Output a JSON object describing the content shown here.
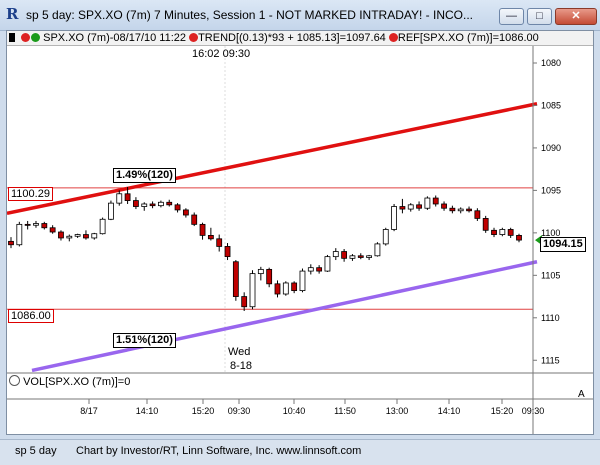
{
  "window": {
    "title": "sp 5 day: SPX.XO (7m) 7 Minutes, Session 1 - NOT MARKED INTRADAY! - INCO...",
    "buttons": {
      "minimize": "—",
      "maximize": "□",
      "close": "✕"
    }
  },
  "legend": {
    "symbol": "SPX.XO (7m)-08/17/10 11:22",
    "trend": "TREND[(0.13)*93 + 1085.13]=1097.64",
    "ref": "REF[SPX.XO (7m)]=1086.00",
    "dot_colors": [
      "#d22",
      "#1a9a1a",
      "#d22"
    ]
  },
  "chart": {
    "time_label_top": "16:02  09:30",
    "last_price": "1094.15",
    "ref_high_label": "1100.29",
    "ref_low_label": "1086.00",
    "trend_upper_label": "1.49%(120)",
    "trend_lower_label": "1.51%(120)",
    "day_label": "Wed",
    "date_label": "8-18",
    "y_ticks": [
      "1115",
      "1110",
      "1105",
      "1100",
      "1095",
      "1090",
      "1085",
      "1080"
    ],
    "x_ticks": [
      "8/17",
      "14:10",
      "15:20",
      "09:30",
      "10:40",
      "11:50",
      "13:00",
      "14:10",
      "15:20",
      "09:30"
    ],
    "volume_label": "VOL[SPX.XO (7m)]=0",
    "scroll_arrow": "A",
    "colors": {
      "upper_trend": "#e01010",
      "lower_trend": "#9966ee",
      "ref_line": "#e04040",
      "candle_red": "#c00000",
      "last_price_arrow": "#1a9a1a"
    }
  },
  "chart_data": {
    "type": "candlestick",
    "ylim": [
      1078.5,
      1117
    ],
    "y_ticks": [
      1080,
      1085,
      1090,
      1095,
      1100,
      1105,
      1110,
      1115
    ],
    "upper_trend": {
      "start": 1097.3,
      "end": 1110.2,
      "label": "1.49%(120)"
    },
    "lower_trend": {
      "start": 1078.8,
      "end": 1091.6,
      "label": "1.51%(120)"
    },
    "ref_lines": [
      1100.29,
      1086.0
    ],
    "last_price": 1094.15,
    "candles": [
      [
        1094.0,
        1094.5,
        1093.2,
        1093.6
      ],
      [
        1093.6,
        1096.3,
        1093.4,
        1096.0
      ],
      [
        1096.0,
        1096.4,
        1095.4,
        1095.9
      ],
      [
        1095.9,
        1096.4,
        1095.6,
        1096.1
      ],
      [
        1096.1,
        1096.3,
        1095.4,
        1095.6
      ],
      [
        1095.6,
        1095.9,
        1094.9,
        1095.1
      ],
      [
        1095.1,
        1095.3,
        1094.1,
        1094.4
      ],
      [
        1094.4,
        1094.8,
        1094.0,
        1094.6
      ],
      [
        1094.6,
        1094.9,
        1094.4,
        1094.8
      ],
      [
        1094.8,
        1095.3,
        1094.2,
        1094.4
      ],
      [
        1094.4,
        1095.0,
        1094.2,
        1094.9
      ],
      [
        1094.9,
        1096.8,
        1094.8,
        1096.6
      ],
      [
        1096.6,
        1098.8,
        1096.5,
        1098.5
      ],
      [
        1098.5,
        1100.0,
        1098.2,
        1099.6
      ],
      [
        1099.6,
        1100.4,
        1098.4,
        1098.8
      ],
      [
        1098.8,
        1099.2,
        1097.8,
        1098.1
      ],
      [
        1098.1,
        1098.6,
        1097.6,
        1098.4
      ],
      [
        1098.4,
        1098.7,
        1097.9,
        1098.2
      ],
      [
        1098.2,
        1098.8,
        1098.0,
        1098.6
      ],
      [
        1098.6,
        1098.9,
        1098.1,
        1098.3
      ],
      [
        1098.3,
        1098.5,
        1097.4,
        1097.7
      ],
      [
        1097.7,
        1097.9,
        1096.8,
        1097.1
      ],
      [
        1097.1,
        1097.4,
        1095.8,
        1096.0
      ],
      [
        1096.0,
        1096.2,
        1094.2,
        1094.7
      ],
      [
        1094.7,
        1095.6,
        1094.1,
        1094.3
      ],
      [
        1094.3,
        1094.8,
        1092.8,
        1093.4
      ],
      [
        1093.4,
        1093.8,
        1091.8,
        1092.2
      ],
      [
        1091.6,
        1091.8,
        1087.0,
        1087.5
      ],
      [
        1087.5,
        1088.0,
        1085.8,
        1086.3
      ],
      [
        1086.3,
        1090.6,
        1086.0,
        1090.2
      ],
      [
        1090.2,
        1091.0,
        1089.4,
        1090.7
      ],
      [
        1090.7,
        1090.9,
        1088.6,
        1089.0
      ],
      [
        1089.0,
        1089.4,
        1087.4,
        1087.8
      ],
      [
        1087.8,
        1089.3,
        1087.6,
        1089.1
      ],
      [
        1089.1,
        1089.3,
        1087.9,
        1088.2
      ],
      [
        1088.2,
        1090.8,
        1088.0,
        1090.5
      ],
      [
        1090.5,
        1091.3,
        1090.1,
        1090.9
      ],
      [
        1090.9,
        1091.2,
        1090.2,
        1090.5
      ],
      [
        1090.5,
        1092.4,
        1090.4,
        1092.2
      ],
      [
        1092.2,
        1093.2,
        1091.8,
        1092.8
      ],
      [
        1092.8,
        1093.1,
        1091.6,
        1092.0
      ],
      [
        1092.0,
        1092.5,
        1091.7,
        1092.3
      ],
      [
        1092.3,
        1092.6,
        1091.9,
        1092.1
      ],
      [
        1092.1,
        1092.4,
        1091.8,
        1092.3
      ],
      [
        1092.3,
        1093.9,
        1092.2,
        1093.7
      ],
      [
        1093.7,
        1095.6,
        1093.5,
        1095.4
      ],
      [
        1095.4,
        1098.4,
        1095.2,
        1098.1
      ],
      [
        1098.1,
        1099.0,
        1097.3,
        1097.8
      ],
      [
        1097.8,
        1098.5,
        1097.5,
        1098.3
      ],
      [
        1098.3,
        1098.7,
        1097.6,
        1097.9
      ],
      [
        1097.9,
        1099.3,
        1097.7,
        1099.1
      ],
      [
        1099.1,
        1099.4,
        1098.1,
        1098.4
      ],
      [
        1098.4,
        1098.7,
        1097.6,
        1097.9
      ],
      [
        1097.9,
        1098.2,
        1097.3,
        1097.6
      ],
      [
        1097.6,
        1098.0,
        1097.3,
        1097.8
      ],
      [
        1097.8,
        1098.1,
        1097.4,
        1097.6
      ],
      [
        1097.6,
        1097.9,
        1096.4,
        1096.7
      ],
      [
        1096.7,
        1097.0,
        1095.0,
        1095.3
      ],
      [
        1095.3,
        1095.6,
        1094.5,
        1094.8
      ],
      [
        1094.8,
        1095.6,
        1094.6,
        1095.4
      ],
      [
        1095.4,
        1095.6,
        1094.4,
        1094.7
      ],
      [
        1094.7,
        1094.9,
        1093.9,
        1094.15
      ]
    ]
  },
  "status": {
    "left": "sp 5 day",
    "center": "Chart by Investor/RT, Linn Software, Inc. www.linnsoft.com"
  }
}
